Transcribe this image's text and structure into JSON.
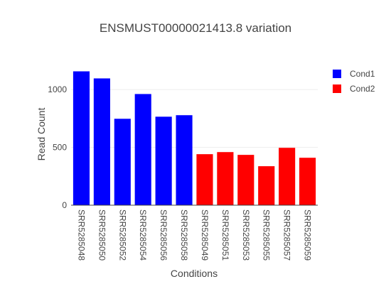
{
  "chart_data": {
    "type": "bar",
    "title": "ENSMUST00000021413.8 variation",
    "x_label": "Conditions",
    "y_label": "Read Count",
    "categories": [
      "SRR5285048",
      "SRR5285050",
      "SRR5285052",
      "SRR5285054",
      "SRR5285056",
      "SRR5285058",
      "SRR5285049",
      "SRR5285051",
      "SRR5285053",
      "SRR5285055",
      "SRR5285057",
      "SRR5285059"
    ],
    "series": [
      {
        "name": "Cond1",
        "color": "#0000ff",
        "values": [
          1157,
          1096,
          747,
          961,
          765,
          778,
          null,
          null,
          null,
          null,
          null,
          null
        ]
      },
      {
        "name": "Cond2",
        "color": "#ff0000",
        "values": [
          null,
          null,
          null,
          null,
          null,
          null,
          441,
          459,
          435,
          337,
          496,
          410
        ]
      }
    ],
    "ylim": [
      0,
      1160
    ],
    "yticks": [
      0,
      500,
      {
        "value": 1000,
        "label": "1000"
      }
    ],
    "grid": true,
    "legend": "top-right"
  }
}
